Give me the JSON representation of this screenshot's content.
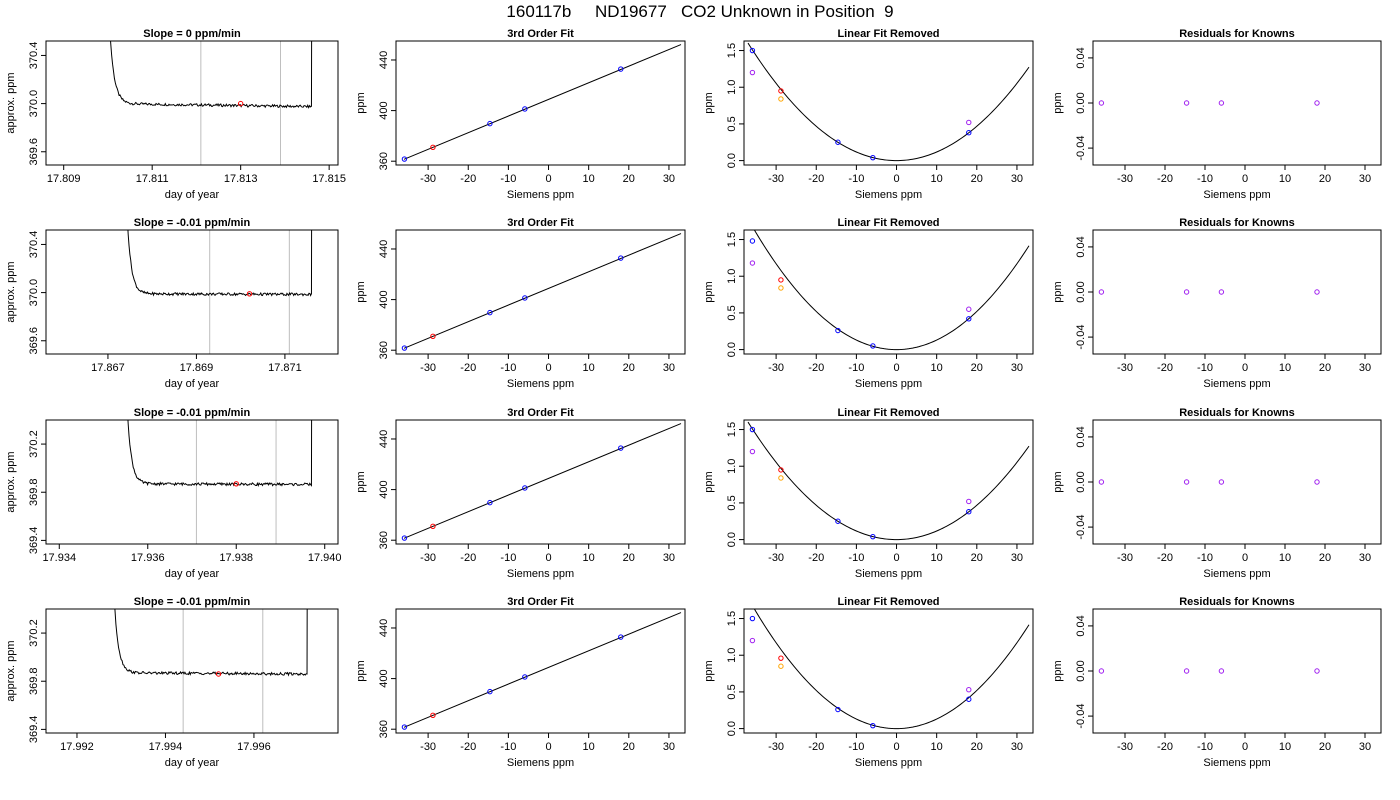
{
  "title": "160117b     ND19677   CO2 Unknown in Position  9",
  "colors": {
    "trace": "#000000",
    "marker_red": "#ff0000",
    "marker_blue": "#0000ff",
    "marker_purple": "#a020f0",
    "marker_orange": "#ffa500",
    "vline": "#bebebe"
  },
  "chart_data": [
    {
      "type": "line",
      "title": "Slope =  0  ppm/min",
      "xlabel": "day of year",
      "ylabel": "approx. ppm",
      "xlim": [
        17.8086,
        17.8152
      ],
      "ylim": [
        369.49,
        370.52
      ],
      "xticks": [
        17.809,
        17.811,
        17.813,
        17.815
      ],
      "xtick_labels": [
        "17.809",
        "17.811",
        "17.813",
        "17.815"
      ],
      "yticks": [
        369.6,
        370.0,
        370.4
      ],
      "ytick_labels": [
        "369.6",
        "370.0",
        "370.4"
      ],
      "segment_start": 17.81,
      "segment_end": 17.8146,
      "baseline": 370.0,
      "drift": -0.025,
      "vlines": [
        17.8121,
        17.8139
      ],
      "marker": {
        "x": 17.813,
        "y": 370.0
      }
    },
    {
      "type": "scatter",
      "title": "3rd Order Fit",
      "xlabel": "Siemens ppm",
      "ylabel": "ppm",
      "xlim": [
        -38,
        34
      ],
      "ylim": [
        357,
        455
      ],
      "xticks": [
        -30,
        -20,
        -10,
        0,
        10,
        20,
        30
      ],
      "xtick_labels": [
        "-30",
        "-20",
        "-10",
        "0",
        "10",
        "20",
        "30"
      ],
      "yticks": [
        360,
        400,
        440
      ],
      "ytick_labels": [
        "360",
        "400",
        "440"
      ],
      "line": {
        "x": [
          -36,
          33
        ],
        "y": [
          361.5,
          452.2
        ]
      },
      "points": [
        {
          "x": -35.9,
          "y": 361.7,
          "color": "blue"
        },
        {
          "x": -28.8,
          "y": 371.0,
          "color": "red"
        },
        {
          "x": -14.6,
          "y": 389.7,
          "color": "blue"
        },
        {
          "x": -5.9,
          "y": 401.3,
          "color": "blue"
        },
        {
          "x": 18.0,
          "y": 432.8,
          "color": "blue"
        }
      ]
    },
    {
      "type": "scatter",
      "title": "Linear Fit Removed",
      "xlabel": "Siemens ppm",
      "ylabel": "ppm",
      "xlim": [
        -38,
        34
      ],
      "ylim": [
        -0.06,
        1.63
      ],
      "xticks": [
        -30,
        -20,
        -10,
        0,
        10,
        20,
        30
      ],
      "xtick_labels": [
        "-30",
        "-20",
        "-10",
        "0",
        "10",
        "20",
        "30"
      ],
      "yticks": [
        0,
        0.5,
        1,
        1.5
      ],
      "ytick_labels": [
        "0.0",
        "0.5",
        "1.0",
        "1.5"
      ],
      "curve_coef": 0.00117,
      "points": [
        {
          "x": -35.9,
          "y": 1.5,
          "color": "blue"
        },
        {
          "x": -35.9,
          "y": 1.2,
          "color": "purple"
        },
        {
          "x": -28.8,
          "y": 0.95,
          "color": "red"
        },
        {
          "x": -28.8,
          "y": 0.84,
          "color": "orange"
        },
        {
          "x": -14.6,
          "y": 0.25,
          "color": "blue"
        },
        {
          "x": -5.9,
          "y": 0.04,
          "color": "blue"
        },
        {
          "x": 18.0,
          "y": 0.38,
          "color": "blue"
        },
        {
          "x": 18.0,
          "y": 0.52,
          "color": "purple"
        }
      ]
    },
    {
      "type": "scatter",
      "title": "Residuals for Knowns",
      "xlabel": "Siemens ppm",
      "ylabel": "ppm",
      "xlim": [
        -38,
        34
      ],
      "ylim": [
        -0.055,
        0.055
      ],
      "xticks": [
        -30,
        -20,
        -10,
        0,
        10,
        20,
        30
      ],
      "xtick_labels": [
        "-30",
        "-20",
        "-10",
        "0",
        "10",
        "20",
        "30"
      ],
      "yticks": [
        -0.04,
        0,
        0.04
      ],
      "ytick_labels": [
        "-0.04",
        "0.00",
        "0.04"
      ],
      "points": [
        {
          "x": -35.9,
          "y": 0,
          "color": "purple"
        },
        {
          "x": -14.6,
          "y": 0,
          "color": "purple"
        },
        {
          "x": -5.9,
          "y": 0,
          "color": "purple"
        },
        {
          "x": 18.0,
          "y": 0,
          "color": "purple"
        }
      ]
    },
    {
      "type": "line",
      "title": "Slope =  -0.01  ppm/min",
      "xlabel": "day of year",
      "ylabel": "approx. ppm",
      "xlim": [
        17.8656,
        17.8722
      ],
      "ylim": [
        369.49,
        370.52
      ],
      "xticks": [
        17.867,
        17.869,
        17.871
      ],
      "xtick_labels": [
        "17.867",
        "17.869",
        "17.871"
      ],
      "yticks": [
        369.6,
        370.0,
        370.4
      ],
      "ytick_labels": [
        "369.6",
        "370.0",
        "370.4"
      ],
      "segment_start": 17.8674,
      "segment_end": 17.8716,
      "baseline": 369.99,
      "drift": -0.005,
      "vlines": [
        17.8693,
        17.8711
      ],
      "marker": {
        "x": 17.8702,
        "y": 369.99
      }
    },
    {
      "type": "scatter",
      "title": "3rd Order Fit",
      "xlabel": "Siemens ppm",
      "ylabel": "ppm",
      "xlim": [
        -38,
        34
      ],
      "ylim": [
        357,
        455
      ],
      "xticks": [
        -30,
        -20,
        -10,
        0,
        10,
        20,
        30
      ],
      "xtick_labels": [
        "-30",
        "-20",
        "-10",
        "0",
        "10",
        "20",
        "30"
      ],
      "yticks": [
        360,
        400,
        440
      ],
      "ytick_labels": [
        "360",
        "400",
        "440"
      ],
      "line": {
        "x": [
          -36,
          33
        ],
        "y": [
          361.5,
          452.2
        ]
      },
      "points": [
        {
          "x": -35.9,
          "y": 361.7,
          "color": "blue"
        },
        {
          "x": -28.8,
          "y": 371.0,
          "color": "red"
        },
        {
          "x": -14.6,
          "y": 389.7,
          "color": "blue"
        },
        {
          "x": -5.9,
          "y": 401.3,
          "color": "blue"
        },
        {
          "x": 18.0,
          "y": 432.8,
          "color": "blue"
        }
      ]
    },
    {
      "type": "scatter",
      "title": "Linear Fit Removed",
      "xlabel": "Siemens ppm",
      "ylabel": "ppm",
      "xlim": [
        -38,
        34
      ],
      "ylim": [
        -0.06,
        1.63
      ],
      "xticks": [
        -30,
        -20,
        -10,
        0,
        10,
        20,
        30
      ],
      "xtick_labels": [
        "-30",
        "-20",
        "-10",
        "0",
        "10",
        "20",
        "30"
      ],
      "yticks": [
        0,
        0.5,
        1,
        1.5
      ],
      "ytick_labels": [
        "0.0",
        "0.5",
        "1.0",
        "1.5"
      ],
      "curve_coef": 0.0013,
      "points": [
        {
          "x": -35.9,
          "y": 1.48,
          "color": "blue"
        },
        {
          "x": -35.9,
          "y": 1.18,
          "color": "purple"
        },
        {
          "x": -28.8,
          "y": 0.95,
          "color": "red"
        },
        {
          "x": -28.8,
          "y": 0.84,
          "color": "orange"
        },
        {
          "x": -14.6,
          "y": 0.26,
          "color": "blue"
        },
        {
          "x": -5.9,
          "y": 0.05,
          "color": "blue"
        },
        {
          "x": 18.0,
          "y": 0.42,
          "color": "blue"
        },
        {
          "x": 18.0,
          "y": 0.55,
          "color": "purple"
        }
      ]
    },
    {
      "type": "scatter",
      "title": "Residuals for Knowns",
      "xlabel": "Siemens ppm",
      "ylabel": "ppm",
      "xlim": [
        -38,
        34
      ],
      "ylim": [
        -0.055,
        0.055
      ],
      "xticks": [
        -30,
        -20,
        -10,
        0,
        10,
        20,
        30
      ],
      "xtick_labels": [
        "-30",
        "-20",
        "-10",
        "0",
        "10",
        "20",
        "30"
      ],
      "yticks": [
        -0.04,
        0,
        0.04
      ],
      "ytick_labels": [
        "-0.04",
        "0.00",
        "0.04"
      ],
      "points": [
        {
          "x": -35.9,
          "y": 0,
          "color": "purple"
        },
        {
          "x": -14.6,
          "y": 0,
          "color": "purple"
        },
        {
          "x": -5.9,
          "y": 0,
          "color": "purple"
        },
        {
          "x": 18.0,
          "y": 0,
          "color": "purple"
        }
      ]
    },
    {
      "type": "line",
      "title": "Slope =  -0.01  ppm/min",
      "xlabel": "day of year",
      "ylabel": "approx. ppm",
      "xlim": [
        17.9337,
        17.9403
      ],
      "ylim": [
        369.37,
        370.4
      ],
      "xticks": [
        17.934,
        17.936,
        17.938,
        17.94
      ],
      "xtick_labels": [
        "17.934",
        "17.936",
        "17.938",
        "17.940"
      ],
      "yticks": [
        369.4,
        369.8,
        370.2
      ],
      "ytick_labels": [
        "369.4",
        "369.8",
        "370.2"
      ],
      "segment_start": 17.9355,
      "segment_end": 17.9397,
      "baseline": 369.87,
      "drift": -0.005,
      "vlines": [
        17.9371,
        17.9389
      ],
      "marker": {
        "x": 17.938,
        "y": 369.87
      }
    },
    {
      "type": "scatter",
      "title": "3rd Order Fit",
      "xlabel": "Siemens ppm",
      "ylabel": "ppm",
      "xlim": [
        -38,
        34
      ],
      "ylim": [
        357,
        455
      ],
      "xticks": [
        -30,
        -20,
        -10,
        0,
        10,
        20,
        30
      ],
      "xtick_labels": [
        "-30",
        "-20",
        "-10",
        "0",
        "10",
        "20",
        "30"
      ],
      "yticks": [
        360,
        400,
        440
      ],
      "ytick_labels": [
        "360",
        "400",
        "440"
      ],
      "line": {
        "x": [
          -36,
          33
        ],
        "y": [
          361.5,
          452.2
        ]
      },
      "points": [
        {
          "x": -35.9,
          "y": 361.7,
          "color": "blue"
        },
        {
          "x": -28.8,
          "y": 371.0,
          "color": "red"
        },
        {
          "x": -14.6,
          "y": 389.7,
          "color": "blue"
        },
        {
          "x": -5.9,
          "y": 401.3,
          "color": "blue"
        },
        {
          "x": 18.0,
          "y": 432.8,
          "color": "blue"
        }
      ]
    },
    {
      "type": "scatter",
      "title": "Linear Fit Removed",
      "xlabel": "Siemens ppm",
      "ylabel": "ppm",
      "xlim": [
        -38,
        34
      ],
      "ylim": [
        -0.06,
        1.63
      ],
      "xticks": [
        -30,
        -20,
        -10,
        0,
        10,
        20,
        30
      ],
      "xtick_labels": [
        "-30",
        "-20",
        "-10",
        "0",
        "10",
        "20",
        "30"
      ],
      "yticks": [
        0,
        0.5,
        1,
        1.5
      ],
      "ytick_labels": [
        "0.0",
        "0.5",
        "1.0",
        "1.5"
      ],
      "curve_coef": 0.00117,
      "points": [
        {
          "x": -35.9,
          "y": 1.5,
          "color": "blue"
        },
        {
          "x": -35.9,
          "y": 1.2,
          "color": "purple"
        },
        {
          "x": -28.8,
          "y": 0.95,
          "color": "red"
        },
        {
          "x": -28.8,
          "y": 0.84,
          "color": "orange"
        },
        {
          "x": -14.6,
          "y": 0.25,
          "color": "blue"
        },
        {
          "x": -5.9,
          "y": 0.04,
          "color": "blue"
        },
        {
          "x": 18.0,
          "y": 0.38,
          "color": "blue"
        },
        {
          "x": 18.0,
          "y": 0.52,
          "color": "purple"
        }
      ]
    },
    {
      "type": "scatter",
      "title": "Residuals for Knowns",
      "xlabel": "Siemens ppm",
      "ylabel": "ppm",
      "xlim": [
        -38,
        34
      ],
      "ylim": [
        -0.055,
        0.055
      ],
      "xticks": [
        -30,
        -20,
        -10,
        0,
        10,
        20,
        30
      ],
      "xtick_labels": [
        "-30",
        "-20",
        "-10",
        "0",
        "10",
        "20",
        "30"
      ],
      "yticks": [
        -0.04,
        0,
        0.04
      ],
      "ytick_labels": [
        "-0.04",
        "0.00",
        "0.04"
      ],
      "points": [
        {
          "x": -35.9,
          "y": 0,
          "color": "purple"
        },
        {
          "x": -14.6,
          "y": 0,
          "color": "purple"
        },
        {
          "x": -5.9,
          "y": 0,
          "color": "purple"
        },
        {
          "x": 18.0,
          "y": 0,
          "color": "purple"
        }
      ]
    },
    {
      "type": "line",
      "title": "Slope =  -0.01  ppm/min",
      "xlabel": "day of year",
      "ylabel": "approx. ppm",
      "xlim": [
        17.9913,
        17.9979
      ],
      "ylim": [
        369.37,
        370.4
      ],
      "xticks": [
        17.992,
        17.994,
        17.996
      ],
      "xtick_labels": [
        "17.992",
        "17.994",
        "17.996"
      ],
      "yticks": [
        369.4,
        369.8,
        370.2
      ],
      "ytick_labels": [
        "369.4",
        "369.8",
        "370.2"
      ],
      "segment_start": 17.9928,
      "segment_end": 17.9972,
      "baseline": 369.87,
      "drift": -0.01,
      "vlines": [
        17.9944,
        17.9962
      ],
      "marker": {
        "x": 17.9952,
        "y": 369.86
      }
    },
    {
      "type": "scatter",
      "title": "3rd Order Fit",
      "xlabel": "Siemens ppm",
      "ylabel": "ppm",
      "xlim": [
        -38,
        34
      ],
      "ylim": [
        357,
        455
      ],
      "xticks": [
        -30,
        -20,
        -10,
        0,
        10,
        20,
        30
      ],
      "xtick_labels": [
        "-30",
        "-20",
        "-10",
        "0",
        "10",
        "20",
        "30"
      ],
      "yticks": [
        360,
        400,
        440
      ],
      "ytick_labels": [
        "360",
        "400",
        "440"
      ],
      "line": {
        "x": [
          -36,
          33
        ],
        "y": [
          361.5,
          452.2
        ]
      },
      "points": [
        {
          "x": -35.9,
          "y": 361.7,
          "color": "blue"
        },
        {
          "x": -28.8,
          "y": 371.0,
          "color": "red"
        },
        {
          "x": -14.6,
          "y": 389.7,
          "color": "blue"
        },
        {
          "x": -5.9,
          "y": 401.3,
          "color": "blue"
        },
        {
          "x": 18.0,
          "y": 432.8,
          "color": "blue"
        }
      ]
    },
    {
      "type": "scatter",
      "title": "Linear Fit Removed",
      "xlabel": "Siemens ppm",
      "ylabel": "ppm",
      "xlim": [
        -38,
        34
      ],
      "ylim": [
        -0.06,
        1.63
      ],
      "xticks": [
        -30,
        -20,
        -10,
        0,
        10,
        20,
        30
      ],
      "xtick_labels": [
        "-30",
        "-20",
        "-10",
        "0",
        "10",
        "20",
        "30"
      ],
      "yticks": [
        0,
        0.5,
        1,
        1.5
      ],
      "ytick_labels": [
        "0.0",
        "0.5",
        "1.0",
        "1.5"
      ],
      "curve_coef": 0.0013,
      "points": [
        {
          "x": -35.9,
          "y": 1.5,
          "color": "blue"
        },
        {
          "x": -35.9,
          "y": 1.2,
          "color": "purple"
        },
        {
          "x": -28.8,
          "y": 0.96,
          "color": "red"
        },
        {
          "x": -28.8,
          "y": 0.85,
          "color": "orange"
        },
        {
          "x": -14.6,
          "y": 0.26,
          "color": "blue"
        },
        {
          "x": -5.9,
          "y": 0.04,
          "color": "blue"
        },
        {
          "x": 18.0,
          "y": 0.4,
          "color": "blue"
        },
        {
          "x": 18.0,
          "y": 0.53,
          "color": "purple"
        }
      ]
    },
    {
      "type": "scatter",
      "title": "Residuals for Knowns",
      "xlabel": "Siemens ppm",
      "ylabel": "ppm",
      "xlim": [
        -38,
        34
      ],
      "ylim": [
        -0.055,
        0.055
      ],
      "xticks": [
        -30,
        -20,
        -10,
        0,
        10,
        20,
        30
      ],
      "xtick_labels": [
        "-30",
        "-20",
        "-10",
        "0",
        "10",
        "20",
        "30"
      ],
      "yticks": [
        -0.04,
        0,
        0.04
      ],
      "ytick_labels": [
        "-0.04",
        "0.00",
        "0.04"
      ],
      "points": [
        {
          "x": -35.9,
          "y": 0,
          "color": "purple"
        },
        {
          "x": -14.6,
          "y": 0,
          "color": "purple"
        },
        {
          "x": -5.9,
          "y": 0,
          "color": "purple"
        },
        {
          "x": 18.0,
          "y": 0,
          "color": "purple"
        }
      ]
    }
  ]
}
